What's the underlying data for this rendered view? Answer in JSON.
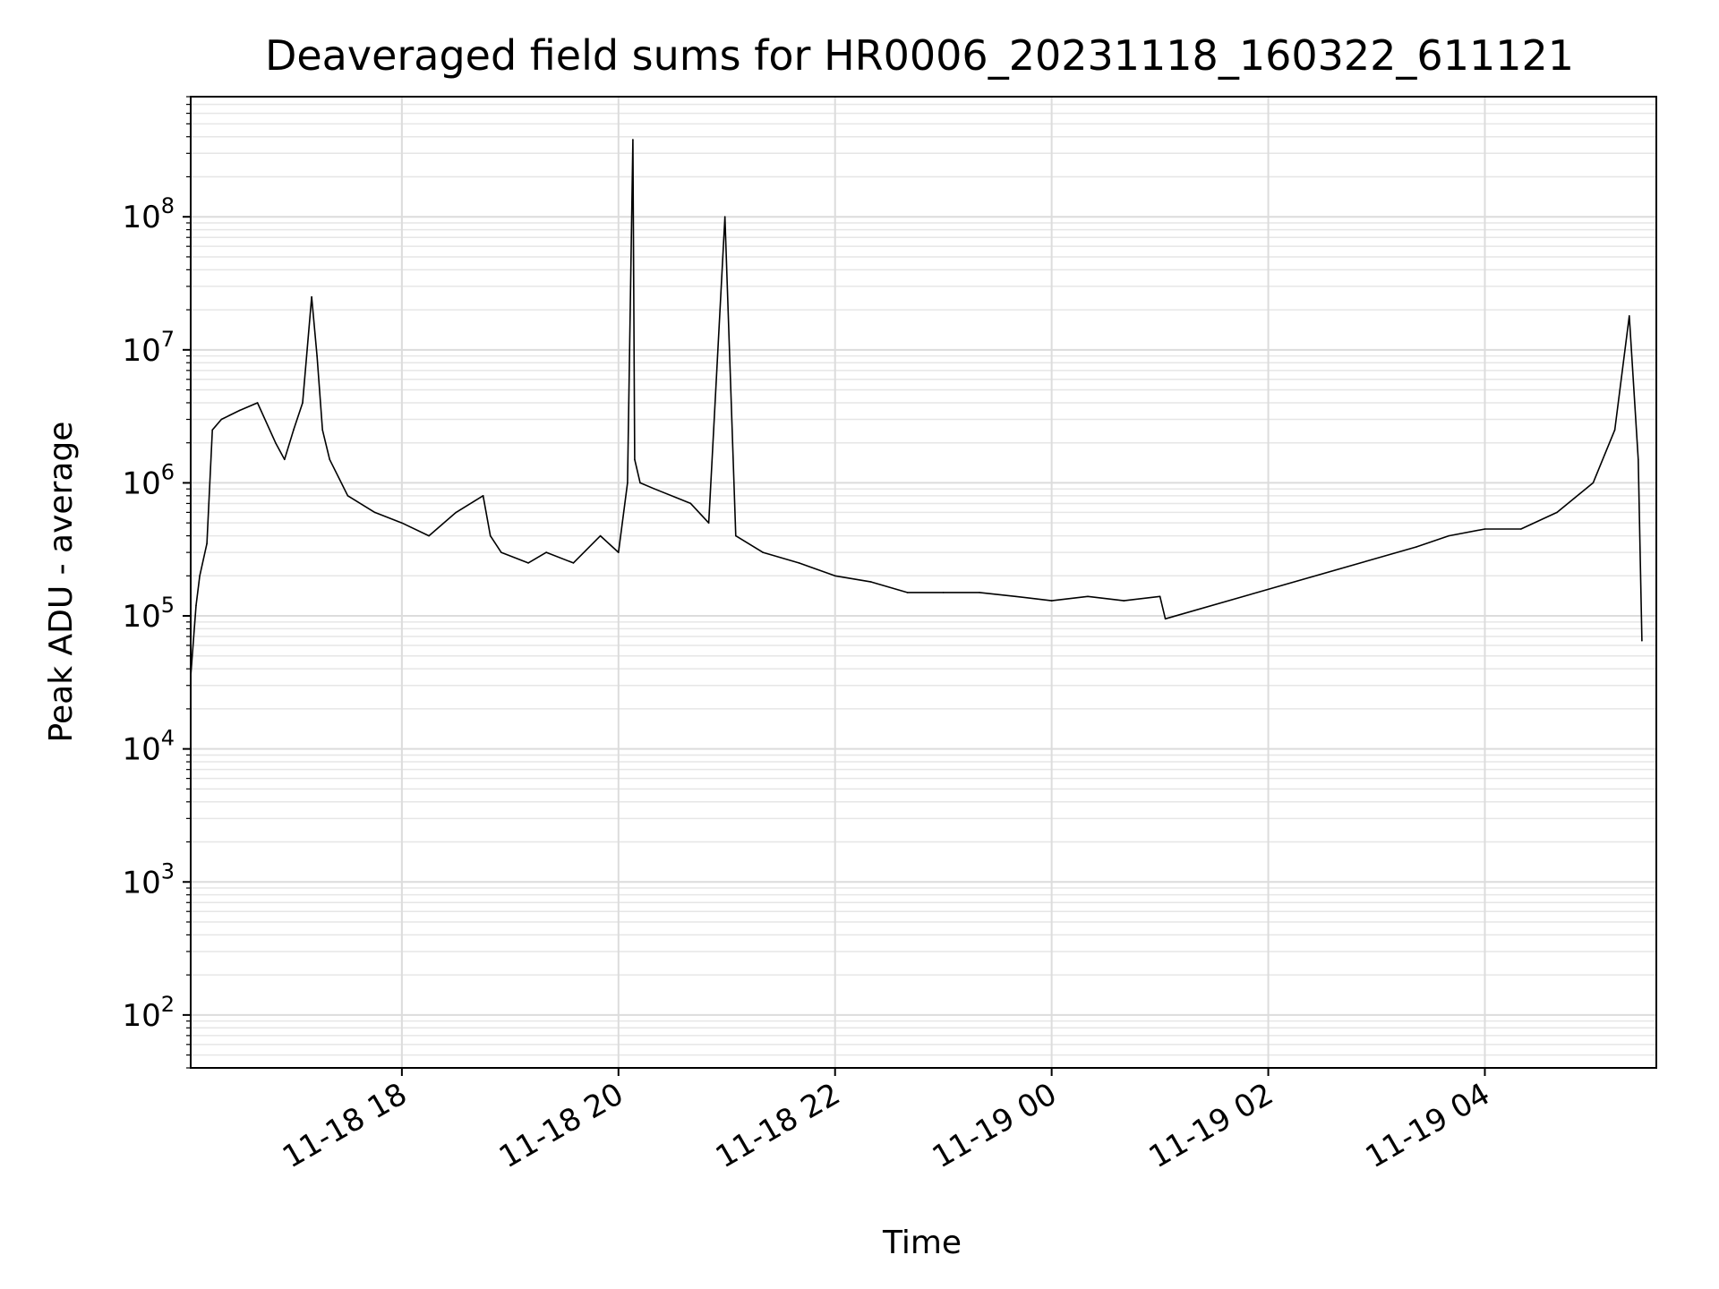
{
  "chart_data": {
    "type": "line",
    "title": "Deaveraged field sums for HR0006_20231118_160322_611121",
    "xlabel": "Time",
    "ylabel": "Peak ADU - average",
    "y_scale": "log",
    "ylim": [
      40,
      800000000
    ],
    "xlim": [
      "2023-11-18T16:03",
      "2023-11-19T05:35"
    ],
    "x_tick_labels": [
      "11-18 18",
      "11-18 20",
      "11-18 22",
      "11-19 00",
      "11-19 02",
      "11-19 04"
    ],
    "x_ticks": [
      "2023-11-18T18:00",
      "2023-11-18T20:00",
      "2023-11-18T22:00",
      "2023-11-19T00:00",
      "2023-11-19T02:00",
      "2023-11-19T04:00"
    ],
    "y_tick_labels": [
      "10^2",
      "10^3",
      "10^4",
      "10^5",
      "10^6",
      "10^7",
      "10^8"
    ],
    "y_ticks": [
      100,
      1000,
      10000,
      100000,
      1000000,
      10000000,
      100000000
    ],
    "grid": true,
    "series_color": "#000000",
    "series": [
      {
        "x": [
          "2023-11-18T16:03",
          "2023-11-18T16:06",
          "2023-11-18T16:08",
          "2023-11-18T16:12",
          "2023-11-18T16:15",
          "2023-11-18T16:20",
          "2023-11-18T16:30",
          "2023-11-18T16:40",
          "2023-11-18T16:50",
          "2023-11-18T16:55",
          "2023-11-18T17:00",
          "2023-11-18T17:05",
          "2023-11-18T17:10",
          "2023-11-18T17:13",
          "2023-11-18T17:16",
          "2023-11-18T17:20",
          "2023-11-18T17:30",
          "2023-11-18T17:45",
          "2023-11-18T18:00",
          "2023-11-18T18:15",
          "2023-11-18T18:30",
          "2023-11-18T18:45",
          "2023-11-18T18:49",
          "2023-11-18T18:55",
          "2023-11-18T19:10",
          "2023-11-18T19:20",
          "2023-11-18T19:35",
          "2023-11-18T19:50",
          "2023-11-18T20:00",
          "2023-11-18T20:05",
          "2023-11-18T20:08",
          "2023-11-18T20:09",
          "2023-11-18T20:12",
          "2023-11-18T20:20",
          "2023-11-18T20:40",
          "2023-11-18T20:50",
          "2023-11-18T20:59",
          "2023-11-18T21:05",
          "2023-11-18T21:20",
          "2023-11-18T21:40",
          "2023-11-18T22:00",
          "2023-11-18T22:20",
          "2023-11-18T22:40",
          "2023-11-18T23:00",
          "2023-11-18T23:20",
          "2023-11-18T23:40",
          "2023-11-19T00:00",
          "2023-11-19T00:20",
          "2023-11-19T00:40",
          "2023-11-19T01:00",
          "2023-11-19T01:03",
          "2023-11-19T03:22",
          "2023-11-19T03:40",
          "2023-11-19T04:00",
          "2023-11-19T04:20",
          "2023-11-19T04:40",
          "2023-11-19T05:00",
          "2023-11-19T05:12",
          "2023-11-19T05:20",
          "2023-11-19T05:25",
          "2023-11-19T05:27"
        ],
        "y": [
          35000,
          120000,
          200000,
          350000,
          2500000,
          3000000,
          3500000,
          4000000,
          2000000,
          1500000,
          2500000,
          4000000,
          25000000,
          9000000,
          2500000,
          1500000,
          800000,
          600000,
          500000,
          400000,
          600000,
          800000,
          400000,
          300000,
          250000,
          300000,
          250000,
          400000,
          300000,
          1000000,
          380000000,
          1500000,
          1000000,
          900000,
          700000,
          500000,
          100000000,
          400000,
          300000,
          250000,
          200000,
          180000,
          150000,
          150000,
          150000,
          140000,
          130000,
          140000,
          130000,
          140000,
          95000,
          330000,
          400000,
          450000,
          450000,
          600000,
          1000000,
          2500000,
          18000000,
          1500000,
          65000
        ]
      }
    ]
  }
}
